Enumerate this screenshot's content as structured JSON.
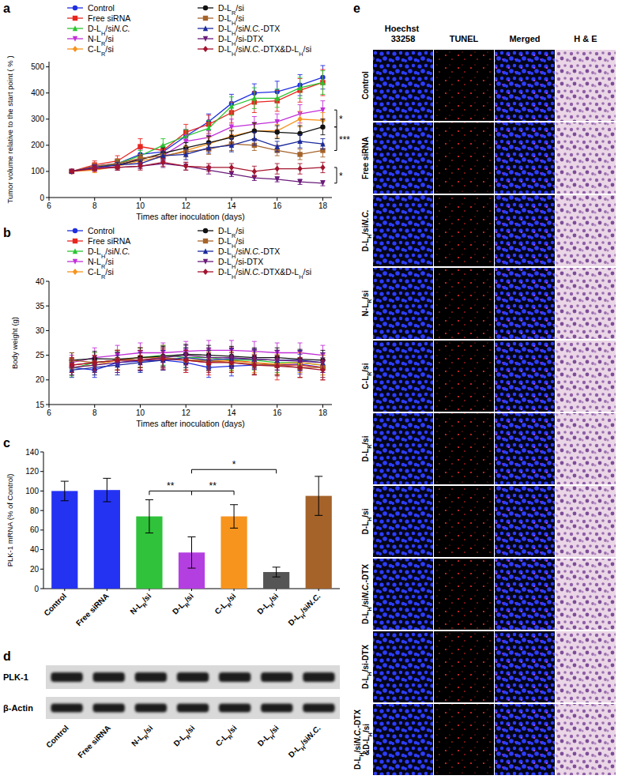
{
  "chart_data": [
    {
      "type": "line",
      "title": "a",
      "x_label": "Times after inoculation (days)",
      "y_label": "Tumor volume relative to the start point ( % )",
      "x": [
        7,
        8,
        9,
        10,
        11,
        12,
        13,
        14,
        15,
        16,
        17,
        18
      ],
      "xlim": [
        6,
        18.4
      ],
      "xticks": [
        6,
        8,
        10,
        12,
        14,
        16,
        18
      ],
      "ylim": [
        0,
        520
      ],
      "yticks": [
        0,
        100,
        200,
        300,
        400,
        500
      ],
      "grid": false,
      "legend": "top",
      "series": [
        {
          "name": "Control",
          "color": "#1f2fe0",
          "marker": "circle",
          "values": [
            100,
            120,
            130,
            165,
            175,
            235,
            290,
            360,
            400,
            405,
            430,
            460
          ],
          "errors": [
            5,
            10,
            15,
            20,
            20,
            25,
            30,
            35,
            35,
            40,
            40,
            45
          ]
        },
        {
          "name": "Free siRNA",
          "color": "#e8251f",
          "marker": "square",
          "values": [
            100,
            125,
            140,
            195,
            180,
            250,
            280,
            325,
            365,
            370,
            410,
            440
          ],
          "errors": [
            5,
            15,
            20,
            30,
            20,
            30,
            35,
            40,
            40,
            40,
            45,
            50
          ]
        },
        {
          "name": "D-LH/siN.C.",
          "color": "#29c42f",
          "marker": "triangle",
          "values": [
            100,
            115,
            130,
            160,
            200,
            235,
            265,
            350,
            380,
            380,
            420,
            440
          ],
          "errors": [
            5,
            10,
            15,
            20,
            25,
            25,
            30,
            35,
            40,
            35,
            40,
            45
          ]
        },
        {
          "name": "N-LR/si",
          "color": "#c22fd8",
          "marker": "triangle-down",
          "values": [
            100,
            110,
            120,
            150,
            160,
            215,
            230,
            270,
            280,
            290,
            320,
            335
          ],
          "errors": [
            5,
            10,
            15,
            15,
            20,
            25,
            25,
            30,
            30,
            30,
            35,
            35
          ]
        },
        {
          "name": "C-LR/si",
          "color": "#f7941d",
          "marker": "diamond",
          "values": [
            100,
            105,
            120,
            140,
            155,
            180,
            205,
            235,
            255,
            255,
            300,
            295
          ],
          "errors": [
            5,
            10,
            10,
            15,
            20,
            20,
            25,
            25,
            30,
            25,
            30,
            30
          ]
        },
        {
          "name": "D-LR/si",
          "color": "#111111",
          "marker": "circle",
          "values": [
            100,
            115,
            125,
            145,
            170,
            190,
            210,
            230,
            255,
            250,
            245,
            270
          ],
          "errors": [
            5,
            10,
            15,
            15,
            20,
            20,
            25,
            25,
            30,
            25,
            30,
            30
          ]
        },
        {
          "name": "D-LH/si",
          "color": "#a5632a",
          "marker": "square",
          "values": [
            100,
            120,
            130,
            150,
            160,
            175,
            185,
            205,
            200,
            180,
            165,
            180
          ],
          "errors": [
            5,
            10,
            10,
            15,
            15,
            20,
            20,
            25,
            20,
            20,
            20,
            25
          ]
        },
        {
          "name": "D-LH/siN.C.-DTX",
          "color": "#1b2a9c",
          "marker": "triangle",
          "values": [
            100,
            115,
            125,
            130,
            160,
            165,
            190,
            200,
            225,
            195,
            215,
            205
          ],
          "errors": [
            5,
            10,
            10,
            15,
            15,
            20,
            20,
            25,
            25,
            20,
            25,
            20
          ]
        },
        {
          "name": "D-LH/si-DTX",
          "color": "#6a1b7a",
          "marker": "triangle-down",
          "values": [
            100,
            115,
            115,
            120,
            130,
            120,
            105,
            90,
            75,
            70,
            60,
            55
          ],
          "errors": [
            5,
            10,
            10,
            10,
            15,
            15,
            15,
            10,
            10,
            10,
            10,
            10
          ]
        },
        {
          "name": "D-LH/siN.C.-DTX&D-LH/si",
          "color": "#a3142e",
          "marker": "diamond",
          "values": [
            100,
            110,
            115,
            120,
            135,
            120,
            115,
            115,
            100,
            110,
            110,
            115
          ],
          "errors": [
            5,
            10,
            10,
            15,
            15,
            15,
            15,
            15,
            20,
            20,
            20,
            20
          ]
        }
      ],
      "annotations": [
        {
          "text": "*",
          "y1": 335,
          "y2": 270
        },
        {
          "text": "***",
          "y1": 270,
          "y2": 180
        },
        {
          "text": "*",
          "y1": 115,
          "y2": 55
        }
      ]
    },
    {
      "type": "line",
      "title": "b",
      "x_label": "Times after inoculation (days)",
      "y_label": "Body weight (g)",
      "x": [
        7,
        8,
        9,
        10,
        11,
        12,
        13,
        14,
        15,
        16,
        17,
        18
      ],
      "xlim": [
        6,
        18.4
      ],
      "xticks": [
        6,
        8,
        10,
        12,
        14,
        16,
        18
      ],
      "ylim": [
        15,
        40
      ],
      "yticks": [
        15,
        20,
        25,
        30,
        35,
        40
      ],
      "grid": false,
      "legend": "top",
      "series": [
        {
          "name": "Control",
          "color": "#1f2fe0",
          "marker": "circle",
          "values": [
            22.5,
            22,
            23.5,
            23.8,
            24,
            23.5,
            22.5,
            22.8,
            23,
            23,
            23.2,
            22.5
          ],
          "errors": [
            1.5,
            1.5,
            2,
            2,
            2,
            2,
            2,
            2,
            2,
            2,
            2,
            2
          ]
        },
        {
          "name": "Free siRNA",
          "color": "#e8251f",
          "marker": "square",
          "values": [
            23,
            23.5,
            24,
            24.5,
            24.5,
            24,
            23.5,
            24,
            23.5,
            23,
            23,
            22.5
          ],
          "errors": [
            1.5,
            2,
            2,
            2,
            2.5,
            2.5,
            2.5,
            2.5,
            2.5,
            3,
            2.5,
            2.5
          ]
        },
        {
          "name": "D-LH/siN.C.",
          "color": "#29c42f",
          "marker": "triangle",
          "values": [
            22.3,
            23.5,
            24,
            24.5,
            25,
            24.5,
            24.5,
            24,
            24,
            23.5,
            23.5,
            23
          ],
          "errors": [
            1.5,
            2,
            2,
            2,
            2,
            2,
            2,
            2,
            2,
            2,
            2,
            2
          ]
        },
        {
          "name": "N-LR/si",
          "color": "#c22fd8",
          "marker": "triangle-down",
          "values": [
            23.5,
            24.5,
            25,
            25.5,
            25.5,
            25.8,
            26,
            26,
            25.8,
            25.5,
            25.5,
            25
          ],
          "errors": [
            1.5,
            2,
            2,
            2,
            2,
            2,
            2,
            2,
            2,
            2,
            2,
            2
          ]
        },
        {
          "name": "C-LR/si",
          "color": "#f7941d",
          "marker": "diamond",
          "values": [
            22.5,
            23,
            24,
            24.5,
            24.5,
            24,
            24,
            23.8,
            23.5,
            23.2,
            23.5,
            23
          ],
          "errors": [
            1.5,
            2,
            2,
            2,
            2,
            2,
            2,
            2,
            2,
            2,
            2,
            2
          ]
        },
        {
          "name": "D-LR/si",
          "color": "#111111",
          "marker": "circle",
          "values": [
            24,
            24.3,
            24.2,
            24.5,
            24.8,
            25.2,
            25,
            24.8,
            24.5,
            24.5,
            24.2,
            24
          ],
          "errors": [
            1.5,
            1.5,
            1.5,
            2,
            2,
            2,
            2,
            2,
            2,
            2,
            2,
            2
          ]
        },
        {
          "name": "D-LH/si",
          "color": "#a5632a",
          "marker": "square",
          "values": [
            24,
            23.5,
            24,
            24,
            24.5,
            24,
            23.8,
            23.5,
            23.2,
            23,
            22.5,
            22.5
          ],
          "errors": [
            1.5,
            1.5,
            2,
            2,
            2,
            2,
            2,
            2,
            2,
            2,
            2,
            2
          ]
        },
        {
          "name": "D-LH/siN.C.-DTX",
          "color": "#1b2a9c",
          "marker": "triangle",
          "values": [
            22,
            22.5,
            23,
            23.5,
            24,
            24.5,
            24,
            24.3,
            24.2,
            24,
            24,
            23.5
          ],
          "errors": [
            1.5,
            1.5,
            2,
            2,
            2,
            2,
            2,
            2,
            2,
            2,
            2,
            2
          ]
        },
        {
          "name": "D-LH/si-DTX",
          "color": "#6a1b7a",
          "marker": "triangle-down",
          "values": [
            22.5,
            23,
            23.5,
            24,
            24.5,
            25,
            24.5,
            24.5,
            24.2,
            24,
            23.8,
            23.5
          ],
          "errors": [
            1.5,
            1.5,
            2,
            2,
            2,
            2,
            2,
            2,
            2,
            2,
            2,
            2
          ]
        },
        {
          "name": "D-LH/siN.C.-DTX&D-LH/si",
          "color": "#a3142e",
          "marker": "diamond",
          "values": [
            23,
            23.5,
            24,
            24,
            24.2,
            24,
            23.5,
            23.5,
            23,
            22.8,
            22.5,
            22
          ],
          "errors": [
            1.5,
            1.5,
            2,
            2,
            2,
            2,
            2,
            2,
            2,
            2,
            2,
            2
          ]
        }
      ]
    },
    {
      "type": "bar",
      "title": "c",
      "y_label": "PLK-1 mRNA (% of Control)",
      "categories": [
        "Control",
        "Free siRNA",
        "N-LR/si",
        "D-LR/si",
        "C-LR/si",
        "D-LH/si",
        "D-LH/siN.C."
      ],
      "values": [
        100,
        101,
        74,
        37,
        74,
        17,
        95
      ],
      "errors": [
        10,
        12,
        17,
        16,
        12,
        5,
        20
      ],
      "colors": [
        "#2433f2",
        "#2433f2",
        "#2fc23a",
        "#b43fe0",
        "#f7941d",
        "#555555",
        "#a5632a"
      ],
      "ylim": [
        0,
        140
      ],
      "yticks": [
        0,
        20,
        40,
        60,
        80,
        100,
        120,
        140
      ],
      "grid": false,
      "annotations": [
        {
          "text": "**",
          "from": 2,
          "to": 3,
          "y": 100
        },
        {
          "text": "**",
          "from": 3,
          "to": 4,
          "y": 100
        },
        {
          "text": "*",
          "from": 3,
          "to": 5,
          "y": 122
        }
      ]
    }
  ],
  "blot": {
    "label": "d",
    "rows": [
      "PLK-1",
      "β-Actin"
    ],
    "lanes": [
      "Control",
      "Free siRNA",
      "N-LR/si",
      "D-LR/si",
      "C-LR/si",
      "D-LH/si",
      "D-LH/siN.C."
    ]
  },
  "micrographs": {
    "label": "e",
    "columns": [
      "Hoechst 33258",
      "TUNEL",
      "Merged",
      "H & E"
    ],
    "rows": [
      "Control",
      "Free siRNA",
      "D-LH/siN.C.",
      "N-LR/si",
      "C-LR/si",
      "D-LR/si",
      "D-LH/si",
      "D-LH/siN.C.-DTX",
      "D-LH/si-DTX",
      "D-LH/siN.C.-DTX&D-LH/si"
    ]
  }
}
